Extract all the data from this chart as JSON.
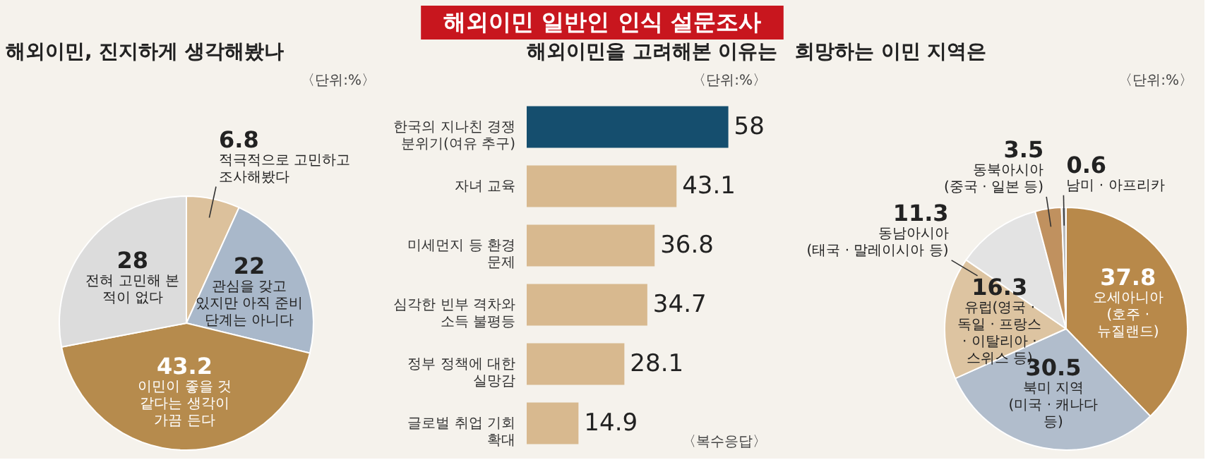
{
  "chart_data": [
    {
      "type": "pie",
      "title": "해외이민, 진지하게 생각해봤나",
      "annotations": [
        "〈단위:%〉"
      ],
      "data_labels": true,
      "categories": [
        "적극적으로 고민하고 조사해봤다",
        "관심을 갖고 있지만 아직 준비 단계는 아니다",
        "이민이 좋을 것 같다는 생각이 가끔 든다",
        "전혀 고민해 본 적이 없다"
      ],
      "values": [
        6.8,
        22,
        43.2,
        28
      ],
      "colors": [
        "#dcc19c",
        "#a9b8ca",
        "#b68b4d",
        "#dcdcdc"
      ]
    },
    {
      "type": "bar",
      "orientation": "horizontal",
      "title": "해외이민을 고려해본 이유는",
      "annotations": [
        "해외이민 일반인 인식 설문조사",
        "〈단위:%〉",
        "〈복수응답〉"
      ],
      "data_labels": true,
      "tick_labels": "y",
      "categories": [
        "한국의 지나친 경쟁 분위기(여유 추구)",
        "자녀 교육",
        "미세먼지 등 환경 문제",
        "심각한 빈부 격차와 소득 불평등",
        "정부 정책에 대한 실망감",
        "글로벌 취업 기회 확대"
      ],
      "values": [
        58,
        43.1,
        36.8,
        34.7,
        28.1,
        14.9
      ],
      "colors": [
        "#154e6e",
        "#d8b98f",
        "#d8b98f",
        "#d8b98f",
        "#d8b98f",
        "#d8b98f"
      ]
    },
    {
      "type": "pie",
      "title": "희망하는 이민 지역은",
      "annotations": [
        "〈단위:%〉"
      ],
      "data_labels": true,
      "categories": [
        "오세아니아 (호주 · 뉴질랜드)",
        "북미 지역 (미국 · 캐나다 등)",
        "유럽(영국 · 독일 · 프랑스 · 이탈리아 · 스위스 등)",
        "동남아시아 (태국 · 말레이시아 등)",
        "동북아시아 (중국 · 일본 등)",
        "남미 · 아프리카"
      ],
      "values": [
        37.8,
        30.5,
        16.3,
        11.3,
        3.5,
        0.6
      ],
      "colors": [
        "#b8894a",
        "#b1bdcc",
        "#ddc4a1",
        "#e3e3e3",
        "#c0915f",
        "#b9b9b9"
      ]
    }
  ]
}
